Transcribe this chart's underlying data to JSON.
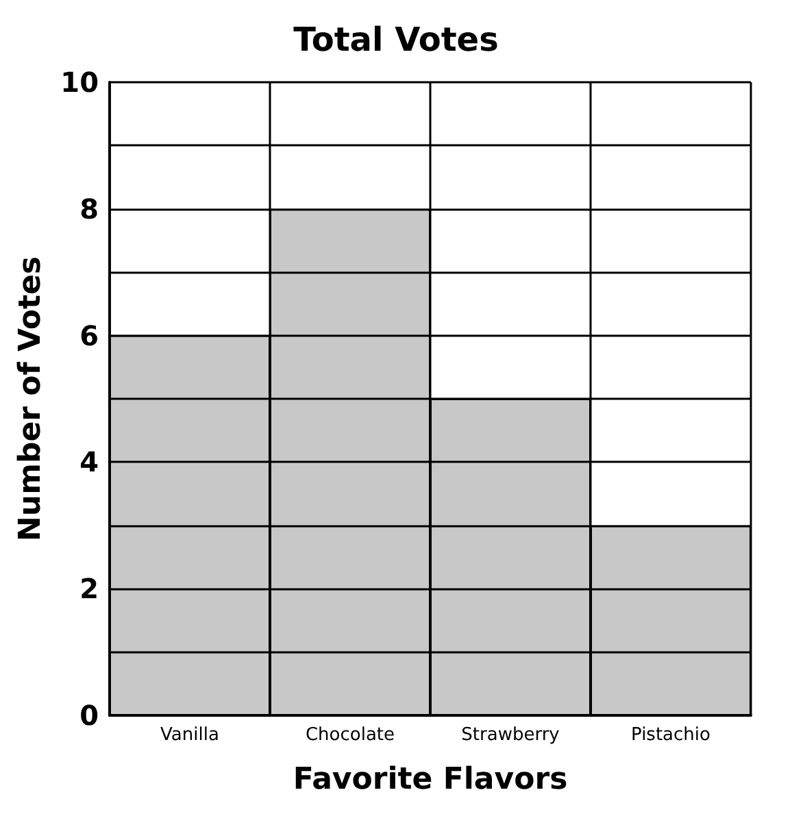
{
  "chart_data": {
    "type": "bar",
    "title": "Total Votes",
    "xlabel": "Favorite Flavors",
    "ylabel": "Number of Votes",
    "categories": [
      "Vanilla",
      "Chocolate",
      "Strawberry",
      "Pistachio"
    ],
    "values": [
      6,
      8,
      5,
      3
    ],
    "color": "#c8c8c8",
    "ylim": [
      0,
      10
    ],
    "yticks": [
      0,
      {
        "value": 1,
        "label": null
      },
      2,
      {
        "value": 3,
        "label": null
      },
      4,
      {
        "value": 5,
        "label": null
      },
      6,
      {
        "value": 7,
        "label": null
      },
      8,
      {
        "value": 9,
        "label": null
      },
      10
    ],
    "grid": true
  }
}
